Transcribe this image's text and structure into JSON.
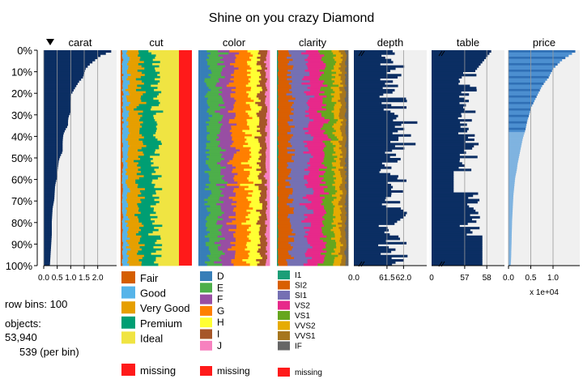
{
  "title": "Shine on you crazy Diamond",
  "row_bins_text": "row bins: 100",
  "objects_label": "objects:",
  "objects_count": "53,940",
  "per_bin_text": "539 (per bin)",
  "sort_indicator": "triangle-down-icon",
  "colors": {
    "numeric_bar": "#0b2e63",
    "price_light": "#3a7fc1",
    "panel_bg": "#f0f0f0",
    "missing": "#ff1a1a"
  },
  "chart_data": {
    "type": "bar",
    "title": "Shine on you crazy Diamond",
    "y_ticks": [
      "0%",
      "10%",
      "20%",
      "30%",
      "40%",
      "50%",
      "60%",
      "70%",
      "80%",
      "90%",
      "100%"
    ],
    "numeric_columns": [
      {
        "name": "carat",
        "ticks": [
          "0.0",
          "0.5",
          "1.0",
          "1.5",
          "2.0"
        ],
        "tick_values": [
          0,
          0.5,
          1.0,
          1.5,
          2.0
        ],
        "xlim": [
          0,
          2.7
        ],
        "values_desc": [
          2.5,
          2.1,
          1.9,
          1.7,
          1.55,
          1.5,
          1.45,
          1.3,
          1.2,
          1.1,
          1.01,
          1.01,
          1.0,
          1.0,
          1.0,
          0.92,
          0.9,
          0.9,
          0.8,
          0.73,
          0.71,
          0.7,
          0.7,
          0.7,
          0.62,
          0.56,
          0.54,
          0.52,
          0.5,
          0.5,
          0.45,
          0.42,
          0.41,
          0.4,
          0.39,
          0.36,
          0.33,
          0.32,
          0.31,
          0.3,
          0.3,
          0.3,
          0.3,
          0.29,
          0.28,
          0.27,
          0.26,
          0.25,
          0.24,
          0.23
        ]
      },
      {
        "name": "depth",
        "ticks": [
          "0.0",
          "61.5",
          "62.0"
        ],
        "xlim": [
          60.5,
          62.7
        ],
        "broken_axis": true
      },
      {
        "name": "table",
        "ticks": [
          "0",
          "57",
          "58"
        ],
        "xlim": [
          55.5,
          58.8
        ],
        "broken_axis": true
      },
      {
        "name": "price",
        "ticks": [
          "0.0",
          "0.5",
          "1.0"
        ],
        "tick_values": [
          0,
          5000,
          10000
        ],
        "xlim": [
          0,
          16000
        ],
        "axis_multiplier": "x 1e+04",
        "values_desc": [
          15000,
          13500,
          12000,
          11000,
          10000,
          9500,
          9000,
          8200,
          7500,
          7000,
          6500,
          6000,
          5500,
          5000,
          4800,
          4500,
          4200,
          4000,
          3800,
          3500,
          3200,
          3000,
          2800,
          2600,
          2400,
          2200,
          2000,
          1900,
          1700,
          1500,
          1400,
          1300,
          1200,
          1100,
          1050,
          1000,
          950,
          900,
          850,
          800,
          780,
          750,
          720,
          700,
          680,
          650,
          620,
          600,
          560,
          500
        ]
      }
    ],
    "categorical_columns": [
      {
        "name": "cut",
        "categories": [
          "Fair",
          "Good",
          "Very Good",
          "Premium",
          "Ideal"
        ],
        "colors": [
          "#d55e00",
          "#56b4e9",
          "#e69f00",
          "#009e73",
          "#f0e442"
        ],
        "missing_label": "missing",
        "missing_color": "#ff1a1a",
        "shares": [
          0.03,
          0.09,
          0.22,
          0.26,
          0.4
        ]
      },
      {
        "name": "color",
        "categories": [
          "D",
          "E",
          "F",
          "G",
          "H",
          "I",
          "J"
        ],
        "colors": [
          "#377eb8",
          "#4daf4a",
          "#984ea3",
          "#ff7f00",
          "#ffff33",
          "#a65628",
          "#f781bf"
        ],
        "missing_label": "missing",
        "missing_color": "#ff1a1a",
        "shares": [
          0.13,
          0.18,
          0.18,
          0.21,
          0.15,
          0.1,
          0.05
        ]
      },
      {
        "name": "clarity",
        "categories": [
          "I1",
          "SI2",
          "SI1",
          "VS2",
          "VS1",
          "VVS2",
          "VVS1",
          "IF"
        ],
        "colors": [
          "#1b9e77",
          "#d95f02",
          "#7570b3",
          "#e7298a",
          "#66a61e",
          "#e6ab02",
          "#a6761d",
          "#666666"
        ],
        "missing_label": "missing",
        "missing_color": "#ff1a1a",
        "shares": [
          0.015,
          0.17,
          0.24,
          0.23,
          0.15,
          0.09,
          0.07,
          0.035
        ]
      }
    ]
  }
}
